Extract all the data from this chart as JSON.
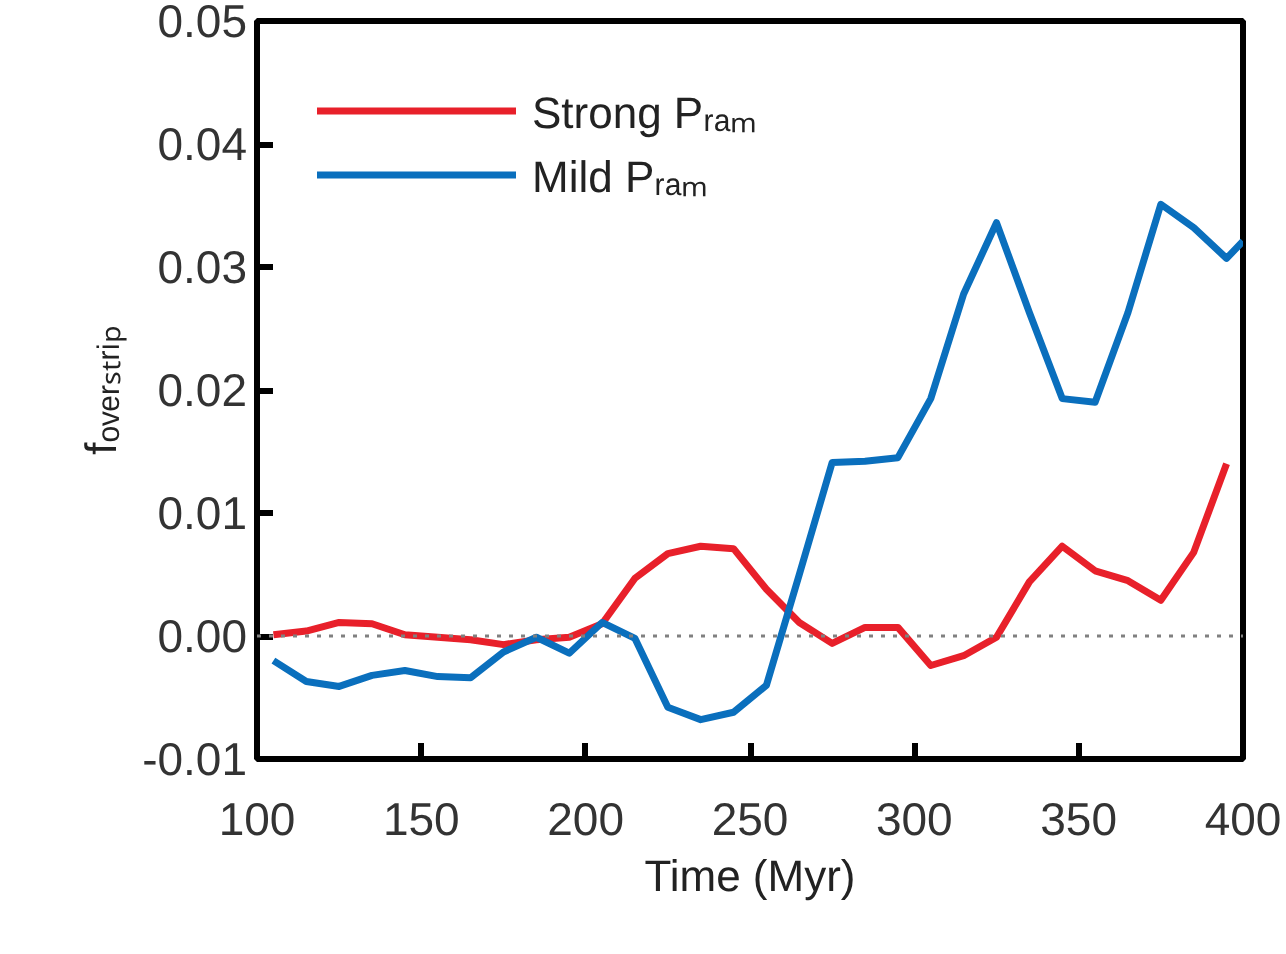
{
  "chart_data": {
    "type": "line",
    "xlabel": "Time (Myr)",
    "ylabel": "fₒᵥₑᵣₛₜᵣᵢₚ",
    "xlim": [
      100,
      400
    ],
    "xticks": [
      100,
      150,
      200,
      250,
      300,
      350,
      400
    ],
    "ylim": [
      -0.01,
      0.05
    ],
    "yticks": [
      {
        "value": -0.01,
        "label": "-0.01"
      },
      {
        "value": 0.0,
        "label": "0.00"
      },
      {
        "value": 0.01,
        "label": "0.01"
      },
      {
        "value": 0.02,
        "label": "0.02"
      },
      {
        "value": 0.03,
        "label": "0.03"
      },
      {
        "value": 0.04,
        "label": "0.04"
      },
      {
        "value": 0.05,
        "label": "0.05"
      }
    ],
    "x": [
      105,
      115,
      125,
      135,
      145,
      155,
      165,
      175,
      185,
      195,
      205,
      215,
      225,
      235,
      245,
      255,
      265,
      275,
      285,
      295,
      305,
      315,
      325,
      335,
      345,
      355,
      365,
      375,
      385,
      395
    ],
    "series": [
      {
        "name": "Strong Pᵣₐₘ",
        "color": "#e8202a",
        "values": [
          0.0001,
          0.0004,
          0.0011,
          0.001,
          0.0001,
          -0.0001,
          -0.0003,
          -0.0007,
          -0.0003,
          -0.0001,
          0.001,
          0.0047,
          0.0067,
          0.0073,
          0.0071,
          0.0038,
          0.0011,
          -0.0006,
          0.0007,
          0.0007,
          -0.0024,
          -0.0016,
          -0.0001,
          0.0044,
          0.0073,
          0.0053,
          0.0045,
          0.0029,
          0.0068,
          0.014
        ]
      },
      {
        "name": "Mild Pᵣₐₘ",
        "color": "#0a6fbd",
        "x": [
          105,
          115,
          125,
          135,
          145,
          155,
          165,
          175,
          185,
          195,
          205,
          215,
          225,
          235,
          245,
          255,
          265,
          275,
          285,
          295,
          305,
          315,
          325,
          335,
          345,
          355,
          365,
          375,
          385,
          395,
          400
        ],
        "values": [
          -0.002,
          -0.0037,
          -0.0041,
          -0.0032,
          -0.0028,
          -0.0033,
          -0.0034,
          -0.0013,
          -0.0001,
          -0.0014,
          0.0011,
          -0.0002,
          -0.0058,
          -0.0068,
          -0.0062,
          -0.004,
          0.005,
          0.0141,
          0.0142,
          0.0145,
          0.0193,
          0.0278,
          0.0336,
          0.0263,
          0.0193,
          0.019,
          0.0263,
          0.0351,
          0.0332,
          0.0307,
          0.0321
        ]
      }
    ],
    "ref_lines": [
      {
        "axis": "y",
        "value": 0.0,
        "label": null,
        "color": "#808080",
        "line_style": "dotted"
      }
    ],
    "legend": "top left",
    "grid": false
  }
}
